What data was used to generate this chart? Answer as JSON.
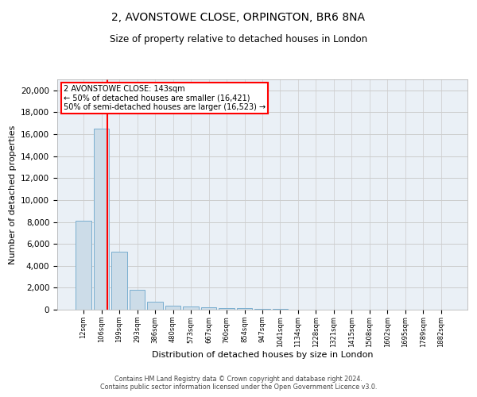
{
  "title": "2, AVONSTOWE CLOSE, ORPINGTON, BR6 8NA",
  "subtitle": "Size of property relative to detached houses in London",
  "xlabel": "Distribution of detached houses by size in London",
  "ylabel": "Number of detached properties",
  "bin_labels": [
    "12sqm",
    "106sqm",
    "199sqm",
    "293sqm",
    "386sqm",
    "480sqm",
    "573sqm",
    "667sqm",
    "760sqm",
    "854sqm",
    "947sqm",
    "1041sqm",
    "1134sqm",
    "1228sqm",
    "1321sqm",
    "1415sqm",
    "1508sqm",
    "1602sqm",
    "1695sqm",
    "1789sqm",
    "1882sqm"
  ],
  "bar_values": [
    8100,
    16500,
    5300,
    1800,
    700,
    350,
    280,
    220,
    160,
    130,
    80,
    50,
    30,
    20,
    10,
    8,
    5,
    4,
    3,
    2,
    1
  ],
  "bar_color": "#ccdce8",
  "bar_edgecolor": "#7aaed0",
  "vline_x": 1.35,
  "vline_color": "red",
  "annotation_text": "2 AVONSTOWE CLOSE: 143sqm\n← 50% of detached houses are smaller (16,421)\n50% of semi-detached houses are larger (16,523) →",
  "annotation_box_color": "red",
  "ylim": [
    0,
    21000
  ],
  "yticks": [
    0,
    2000,
    4000,
    6000,
    8000,
    10000,
    12000,
    14000,
    16000,
    18000,
    20000
  ],
  "grid_color": "#cccccc",
  "footer_line1": "Contains HM Land Registry data © Crown copyright and database right 2024.",
  "footer_line2": "Contains public sector information licensed under the Open Government Licence v3.0.",
  "bg_color": "#eaf0f6",
  "title_fontsize": 10,
  "subtitle_fontsize": 8.5,
  "ylabel_fontsize": 8,
  "xlabel_fontsize": 8,
  "ytick_fontsize": 7.5,
  "xtick_fontsize": 6,
  "footer_fontsize": 5.8
}
